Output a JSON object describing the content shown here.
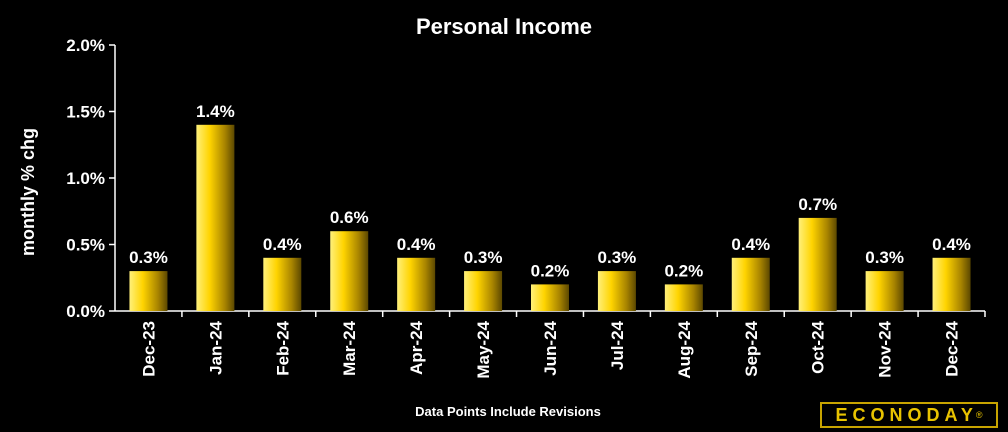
{
  "chart_data": {
    "type": "bar",
    "title": "Personal Income",
    "ylabel": "monthly % chg",
    "xlabel": "",
    "categories": [
      "Dec-23",
      "Jan-24",
      "Feb-24",
      "Mar-24",
      "Apr-24",
      "May-24",
      "Jun-24",
      "Jul-24",
      "Aug-24",
      "Sep-24",
      "Oct-24",
      "Nov-24",
      "Dec-24"
    ],
    "values": [
      0.3,
      1.4,
      0.4,
      0.6,
      0.4,
      0.3,
      0.2,
      0.3,
      0.2,
      0.4,
      0.7,
      0.3,
      0.4
    ],
    "data_labels": [
      "0.3%",
      "1.4%",
      "0.4%",
      "0.6%",
      "0.4%",
      "0.3%",
      "0.2%",
      "0.3%",
      "0.2%",
      "0.4%",
      "0.7%",
      "0.3%",
      "0.4%"
    ],
    "ylim": [
      0,
      2.0
    ],
    "yticks": [
      0,
      0.5,
      1.0,
      1.5,
      2.0
    ],
    "ytick_labels": [
      "0.0%",
      "0.5%",
      "1.0%",
      "1.5%",
      "2.0%"
    ],
    "grid": false,
    "bar_color": "#ffd700",
    "footnote": "Data Points Include Revisions"
  },
  "logo": {
    "text": "ECONODAY",
    "mark": "®"
  }
}
